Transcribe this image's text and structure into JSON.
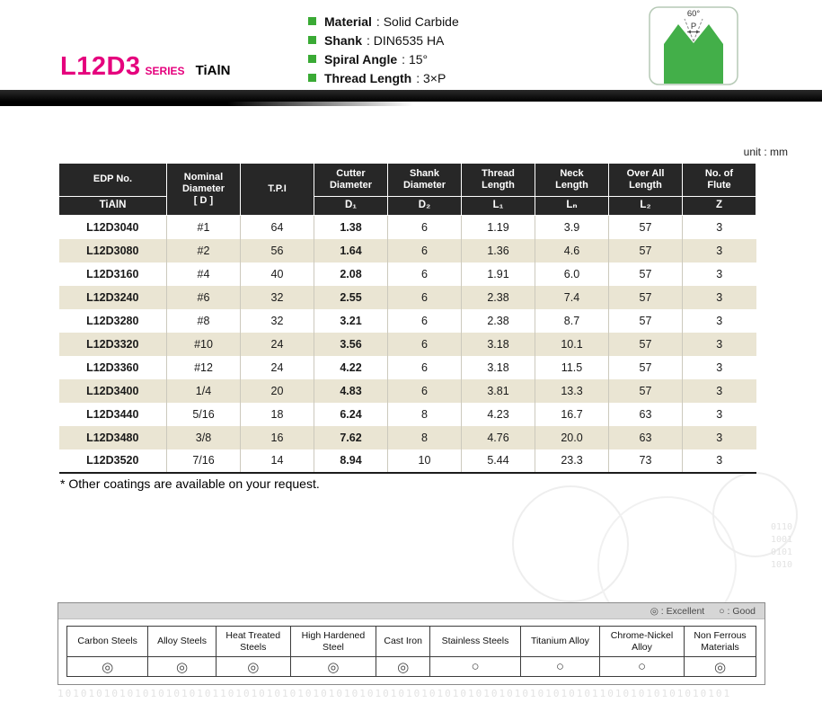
{
  "header": {
    "series_code": "L12D3",
    "series_word": "SERIES",
    "coating": "TiAlN",
    "specs": [
      {
        "label": "Material",
        "value": ": Solid Carbide"
      },
      {
        "label": "Shank",
        "value": ": DIN6535 HA"
      },
      {
        "label": "Spiral Angle",
        "value": ": 15°"
      },
      {
        "label": "Thread Length",
        "value": ": 3×P"
      }
    ],
    "tool_diagram": {
      "angle": "60°",
      "pitch": "P",
      "shape_color": "#43af49"
    }
  },
  "unit_label": "unit : mm",
  "spec_table": {
    "columns": [
      {
        "title": "EDP No.",
        "sub": "TiAlN"
      },
      {
        "title": "Nominal\nDiameter\n[ D ]",
        "sub": ""
      },
      {
        "title": "T.P.I",
        "sub": ""
      },
      {
        "title": "Cutter\nDiameter",
        "sub": "D₁"
      },
      {
        "title": "Shank\nDiameter",
        "sub": "D₂"
      },
      {
        "title": "Thread\nLength",
        "sub": "L₁"
      },
      {
        "title": "Neck\nLength",
        "sub": "Lₙ"
      },
      {
        "title": "Over All\nLength",
        "sub": "L₂"
      },
      {
        "title": "No. of\nFlute",
        "sub": "Z"
      }
    ],
    "rows": [
      [
        "L12D3040",
        "#1",
        "64",
        "1.38",
        "6",
        "1.19",
        "3.9",
        "57",
        "3"
      ],
      [
        "L12D3080",
        "#2",
        "56",
        "1.64",
        "6",
        "1.36",
        "4.6",
        "57",
        "3"
      ],
      [
        "L12D3160",
        "#4",
        "40",
        "2.08",
        "6",
        "1.91",
        "6.0",
        "57",
        "3"
      ],
      [
        "L12D3240",
        "#6",
        "32",
        "2.55",
        "6",
        "2.38",
        "7.4",
        "57",
        "3"
      ],
      [
        "L12D3280",
        "#8",
        "32",
        "3.21",
        "6",
        "2.38",
        "8.7",
        "57",
        "3"
      ],
      [
        "L12D3320",
        "#10",
        "24",
        "3.56",
        "6",
        "3.18",
        "10.1",
        "57",
        "3"
      ],
      [
        "L12D3360",
        "#12",
        "24",
        "4.22",
        "6",
        "3.18",
        "11.5",
        "57",
        "3"
      ],
      [
        "L12D3400",
        "1/4",
        "20",
        "4.83",
        "6",
        "3.81",
        "13.3",
        "57",
        "3"
      ],
      [
        "L12D3440",
        "5/16",
        "18",
        "6.24",
        "8",
        "4.23",
        "16.7",
        "63",
        "3"
      ],
      [
        "L12D3480",
        "3/8",
        "16",
        "7.62",
        "8",
        "4.76",
        "20.0",
        "63",
        "3"
      ],
      [
        "L12D3520",
        "7/16",
        "14",
        "8.94",
        "10",
        "5.44",
        "23.3",
        "73",
        "3"
      ]
    ]
  },
  "note": "* Other coatings are available on your request.",
  "materials": {
    "legend_excellent": "◎ : Excellent",
    "legend_good": "○ : Good",
    "columns": [
      "Carbon Steels",
      "Alloy Steels",
      "Heat Treated\nSteels",
      "High Hardened\nSteel",
      "Cast Iron",
      "Stainless Steels",
      "Titanium Alloy",
      "Chrome-Nickel\nAlloy",
      "Non Ferrous\nMaterials"
    ],
    "ratings": [
      "◎",
      "◎",
      "◎",
      "◎",
      "◎",
      "○",
      "○",
      "○",
      "◎"
    ]
  },
  "colors": {
    "accent_pink": "#e5007d",
    "accent_green": "#3aaa35",
    "table_header_bg": "#272727",
    "row_alt_bg": "#eae5d3"
  },
  "decor": {
    "binary_line1": "010101101010101010101010101010101010101010101011010101010101010101010101010101010101010",
    "binary_line2": "101010101010101010101101010101010101010101010101010101010101010101010110101010101010101",
    "side": "0110\n1001\n0101\n1010"
  }
}
